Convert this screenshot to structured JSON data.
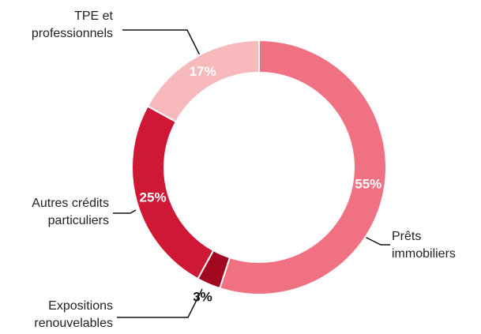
{
  "chart_data": {
    "type": "donut",
    "categories": [
      "Prêts\nimmobiliers",
      "Expositions\nrenouvelables",
      "Autres crédits\nparticuliers",
      "TPE et\nprofessionnels"
    ],
    "values": [
      55,
      3,
      25,
      17
    ],
    "value_labels": [
      "55%",
      "3%",
      "25%",
      "17%"
    ],
    "colors": [
      "#f07282",
      "#a1081f",
      "#cf1736",
      "#f8b9bd"
    ]
  }
}
